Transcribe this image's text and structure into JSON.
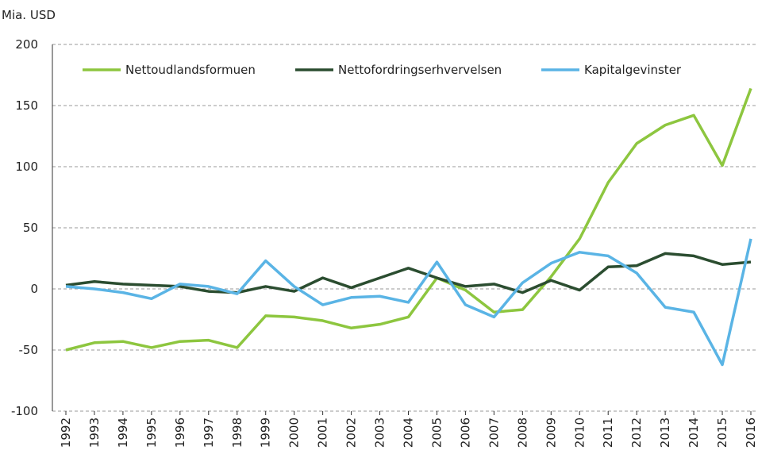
{
  "chart_data": {
    "type": "line",
    "y_axis_label": "Mia. USD",
    "categories": [
      "1992",
      "1993",
      "1994",
      "1995",
      "1996",
      "1997",
      "1998",
      "1999",
      "2000",
      "2001",
      "2002",
      "2003",
      "2004",
      "2005",
      "2006",
      "2007",
      "2008",
      "2009",
      "2010",
      "2011",
      "2012",
      "2013",
      "2014",
      "2015",
      "2016"
    ],
    "series": [
      {
        "name": "Nettoudlandsformuen",
        "color": "#8dc63f",
        "values": [
          -50,
          -44,
          -43,
          -48,
          -43,
          -42,
          -48,
          -22,
          -23,
          -26,
          -32,
          -29,
          -23,
          9,
          -1,
          -19,
          -17,
          10,
          41,
          87,
          119,
          134,
          142,
          101,
          164
        ]
      },
      {
        "name": "Nettofordringserhvervelsen",
        "color": "#2b4d30",
        "values": [
          3,
          6,
          4,
          3,
          2,
          -2,
          -3,
          2,
          -2,
          9,
          1,
          9,
          17,
          9,
          2,
          4,
          -3,
          7,
          -1,
          18,
          19,
          29,
          27,
          20,
          22
        ]
      },
      {
        "name": "Kapitalgevinster",
        "color": "#5ab4e5",
        "values": [
          2,
          0,
          -3,
          -8,
          4,
          2,
          -4,
          23,
          2,
          -13,
          -7,
          -6,
          -11,
          22,
          -13,
          -23,
          5,
          21,
          30,
          27,
          13,
          -15,
          -19,
          -62,
          41
        ]
      }
    ],
    "ylim": [
      -100,
      200
    ],
    "yticks": [
      -100,
      -50,
      0,
      50,
      100,
      150,
      200
    ],
    "grid": true,
    "legend": "top"
  }
}
